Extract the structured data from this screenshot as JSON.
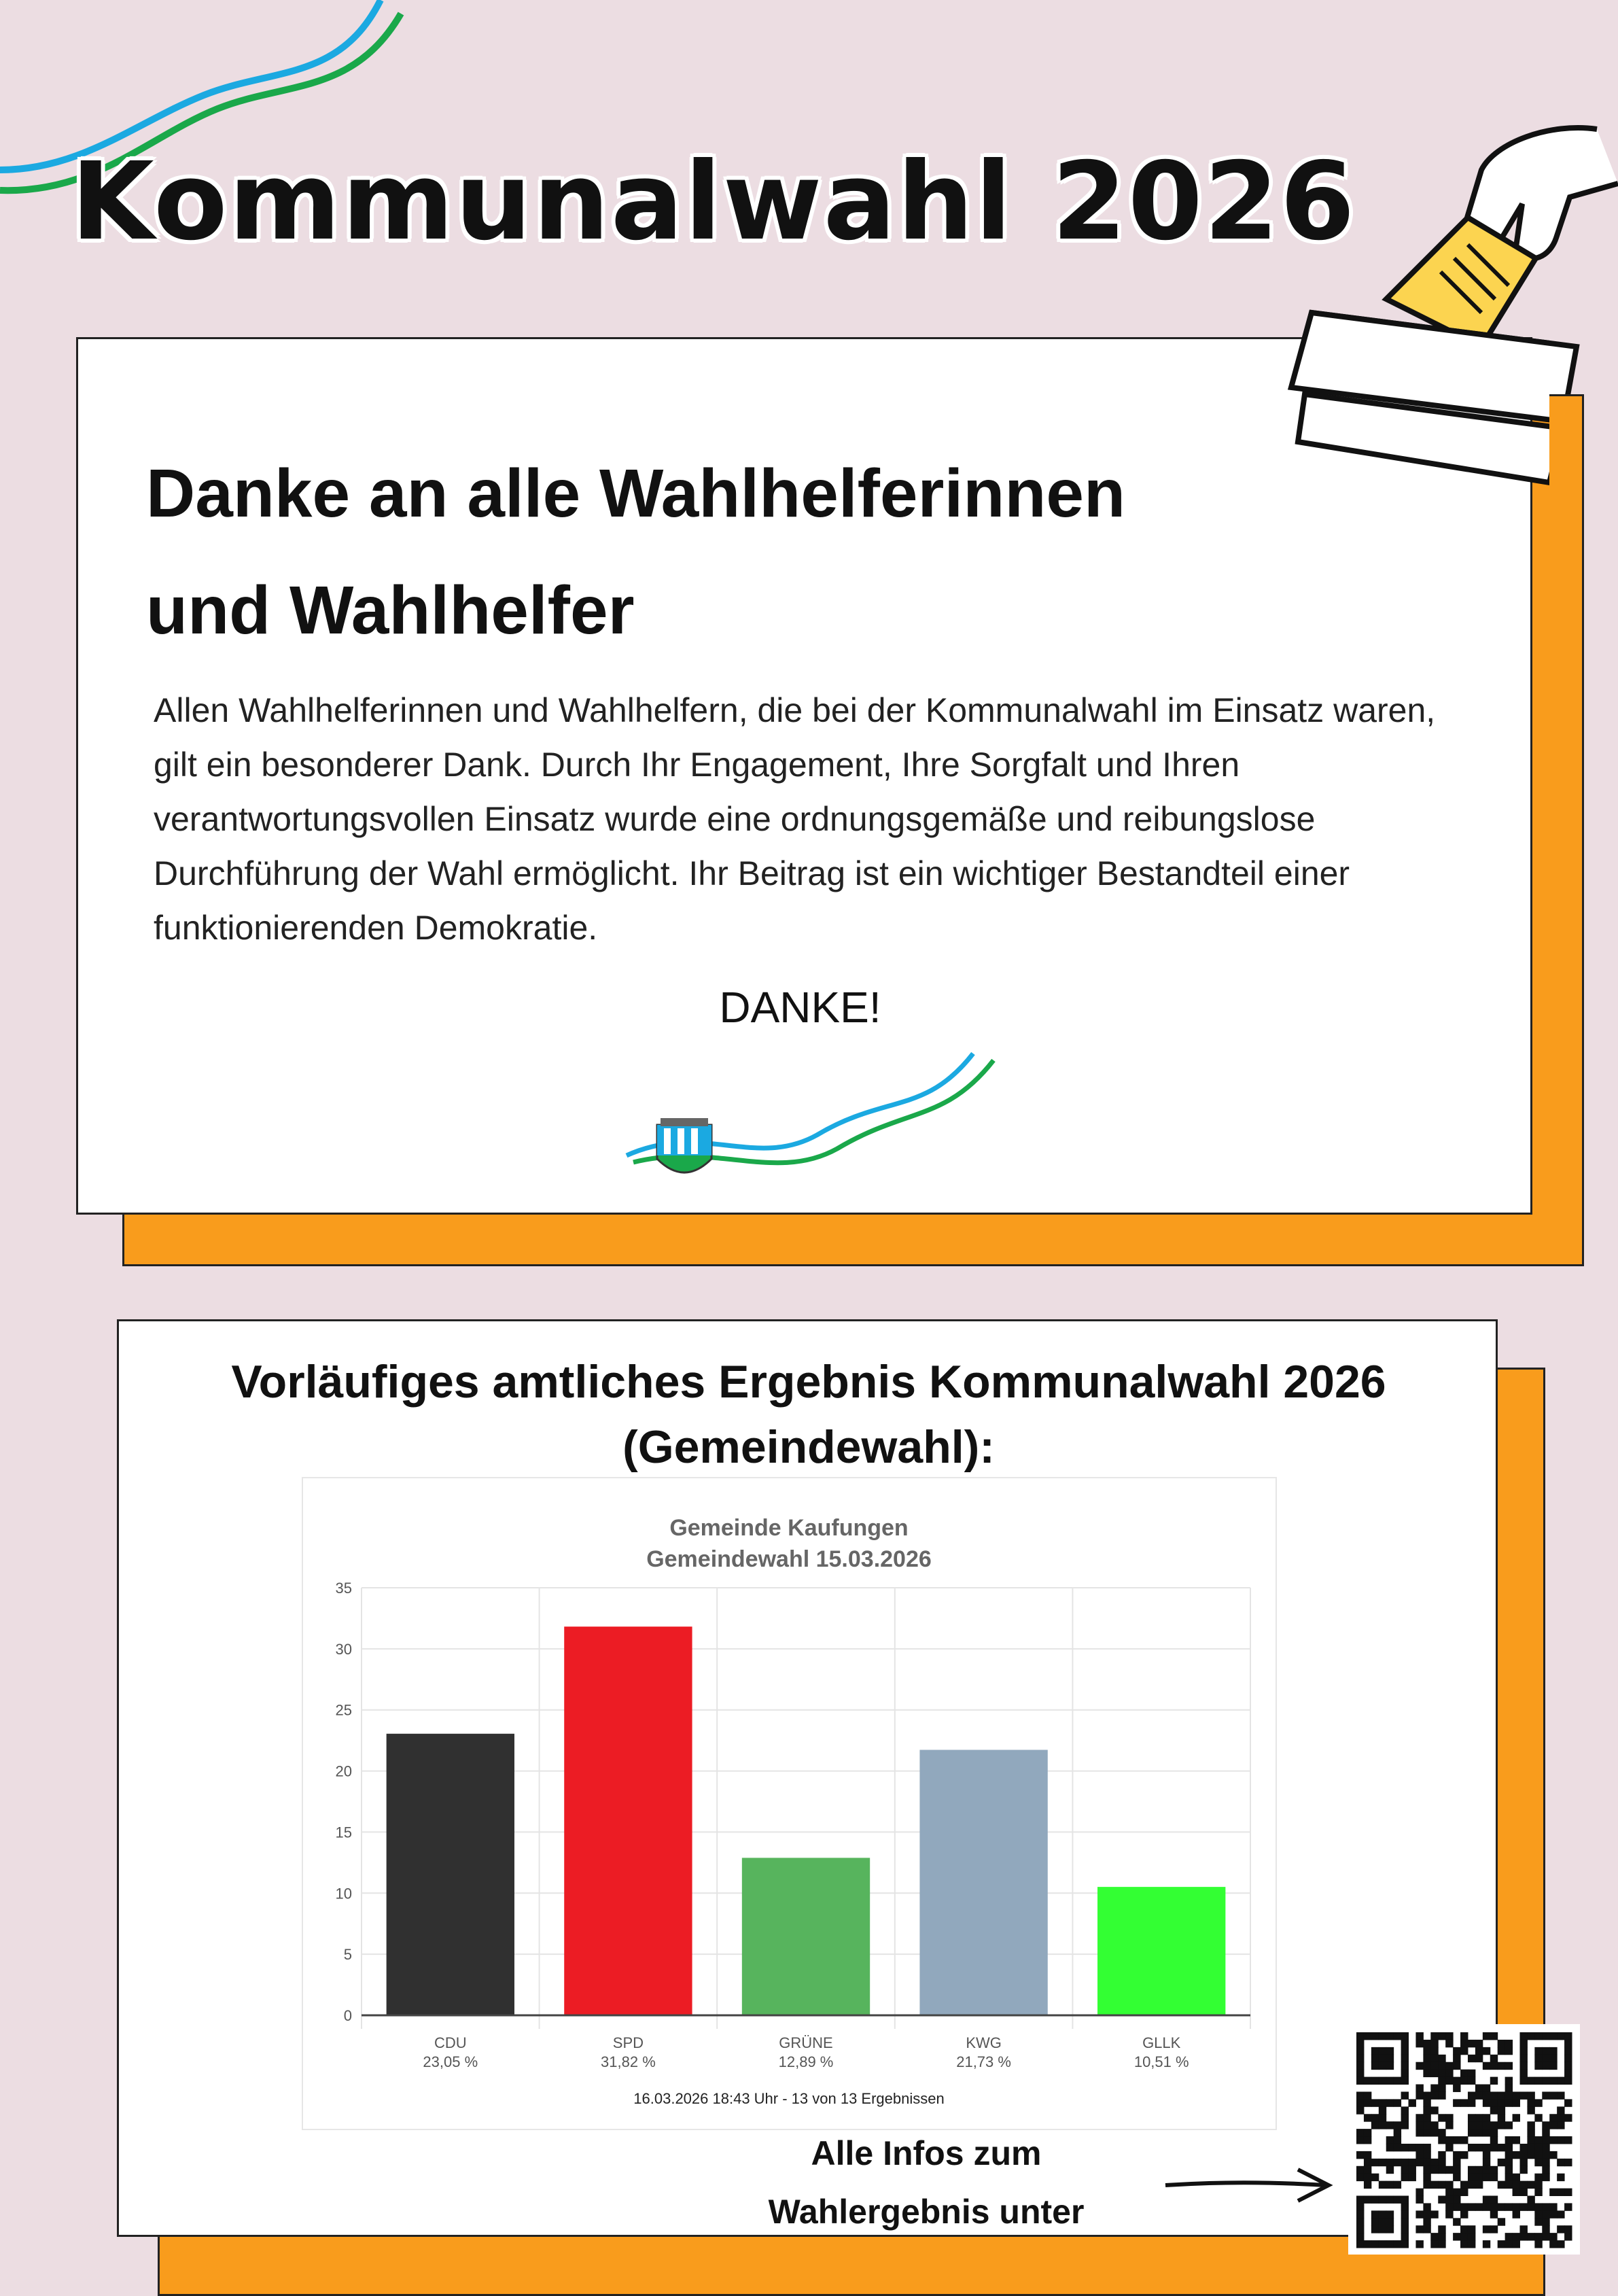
{
  "header": {
    "title": "Kommunalwahl 2026"
  },
  "thanks": {
    "heading_line1": "Danke an alle Wahlhelferinnen",
    "heading_line2": "und Wahlhelfer",
    "body": "Allen Wahlhelferinnen und Wahlhelfern, die bei der Kommunalwahl im Einsatz waren, gilt ein besonderer Dank. Durch Ihr Engagement, Ihre Sorgfalt und Ihren verantwortungsvollen Einsatz wurde eine ordnungsgemäße und reibungslose Durchführung der Wahl ermöglicht. Ihr Beitrag ist ein wichtiger Bestandteil einer funktionierenden Demokratie.",
    "closing": "DANKE!"
  },
  "results": {
    "heading_line1": "Vorläufiges amtliches Ergebnis Kommunalwahl 2026",
    "heading_line2": "(Gemeindewahl):",
    "info_line1": "Alle Infos zum",
    "info_line2": "Wahlergebnis unter"
  },
  "colors": {
    "background": "#ecdde2",
    "accent": "#f99c1c",
    "wave_blue": "#1ba9e1",
    "wave_green": "#1aa84a"
  },
  "chart_data": {
    "type": "bar",
    "title": "Gemeinde Kaufungen",
    "subtitle": "Gemeindewahl 15.03.2026",
    "categories": [
      "CDU",
      "SPD",
      "GRÜNE",
      "KWG",
      "GLLK"
    ],
    "value_labels": [
      "23,05 %",
      "31,82 %",
      "12,89 %",
      "21,73 %",
      "10,51 %"
    ],
    "values": [
      23.05,
      31.82,
      12.89,
      21.73,
      10.51
    ],
    "colors": [
      "#303030",
      "#ec1c24",
      "#57b45d",
      "#91a8bd",
      "#33ff33"
    ],
    "ylim": [
      0,
      35
    ],
    "yticks": [
      "0",
      "5",
      "10",
      "15",
      "20",
      "25",
      "30",
      "35"
    ],
    "grid": true,
    "footer": "16.03.2026 18:43 Uhr - 13 von 13 Ergebnissen"
  }
}
